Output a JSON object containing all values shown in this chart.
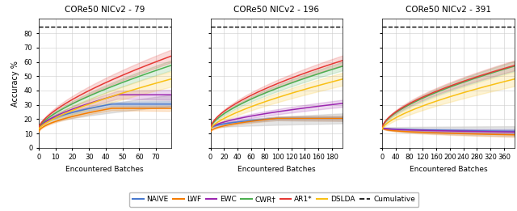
{
  "titles": [
    "CORe50 NICv2 - 79",
    "CORe50 NICv2 - 196",
    "CORe50 NICv2 - 391"
  ],
  "xlabel": "Encountered Batches",
  "ylabel": "Accuracy %",
  "cumulative_value": 84.5,
  "ylim": [
    0,
    90
  ],
  "yticks": [
    0,
    10,
    20,
    30,
    40,
    50,
    60,
    70,
    80
  ],
  "colors": {
    "NAIVE": "#4878cf",
    "LWF": "#f57c00",
    "EWC": "#9c27b0",
    "CWR+": "#4caf50",
    "AR1+": "#e53935",
    "DSLDA": "#f9c015",
    "GRAY": "#999999",
    "Cumulative": "#000000"
  },
  "legend_labels": [
    "NAIVE",
    "LWF",
    "EWC",
    "CWR†",
    "AR1*",
    "DSLDA",
    "-- Cumulative"
  ],
  "legend_keys": [
    "NAIVE",
    "LWF",
    "EWC",
    "CWR+",
    "AR1+",
    "DSLDA",
    "Cumulative"
  ]
}
